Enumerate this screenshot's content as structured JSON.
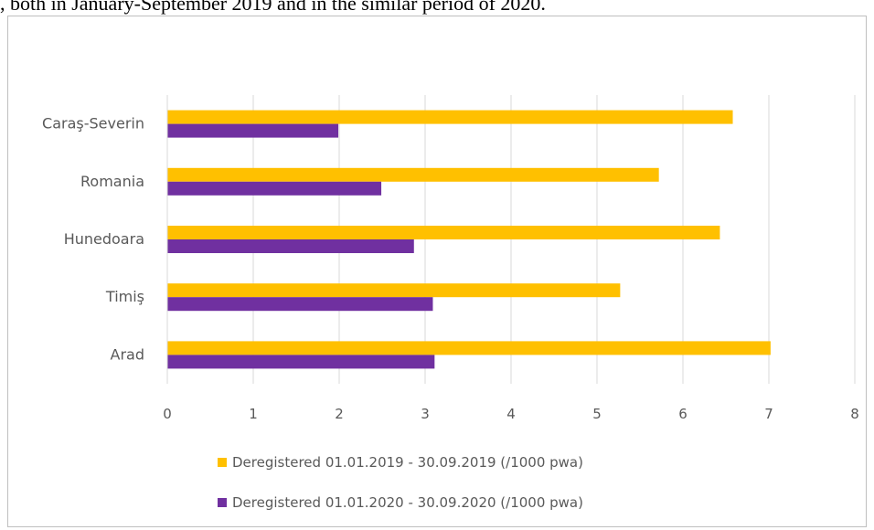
{
  "caption": ", both in January-September 2019 and in the similar period of 2020.",
  "chart_data": {
    "type": "bar",
    "orientation": "horizontal",
    "categories": [
      "Caraş-Severin",
      "Romania",
      "Hunedoara",
      "Timiş",
      "Arad"
    ],
    "series": [
      {
        "name": "Deregistered 01.01.2019 - 30.09.2019 (/1000 pwa)",
        "color": "#FFC000",
        "values": [
          6.58,
          5.72,
          6.43,
          5.27,
          7.02
        ]
      },
      {
        "name": "Deregistered 01.01.2020 - 30.09.2020 (/1000 pwa)",
        "color": "#7030A0",
        "values": [
          1.99,
          2.49,
          2.87,
          3.09,
          3.11
        ]
      }
    ],
    "xlim": [
      0,
      8
    ],
    "xticks": [
      "0",
      "1",
      "2",
      "3",
      "4",
      "5",
      "6",
      "7",
      "8"
    ],
    "grid": "vertical",
    "legend": "bottom",
    "xlabel": "",
    "ylabel": "",
    "title": ""
  }
}
